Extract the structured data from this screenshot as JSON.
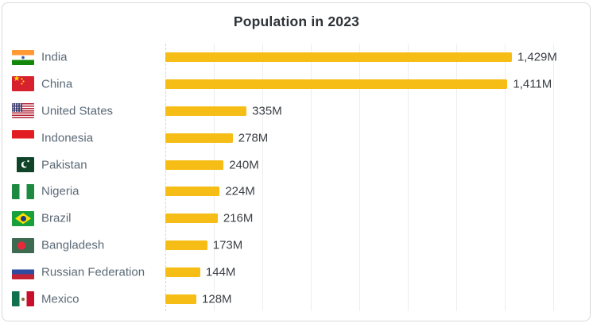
{
  "chart_data": {
    "type": "bar",
    "orientation": "horizontal",
    "title": "Population in 2023",
    "categories": [
      "India",
      "China",
      "United States",
      "Indonesia",
      "Pakistan",
      "Nigeria",
      "Brazil",
      "Bangladesh",
      "Russian Federation",
      "Mexico"
    ],
    "values": [
      1429,
      1411,
      335,
      278,
      240,
      224,
      216,
      173,
      144,
      128
    ],
    "value_labels": [
      "1,429M",
      "1,411M",
      "335M",
      "278M",
      "240M",
      "224M",
      "216M",
      "173M",
      "144M",
      "128M"
    ],
    "flag_icons": [
      "in",
      "cn",
      "us",
      "id",
      "pk",
      "ng",
      "br",
      "bd",
      "ru",
      "mx"
    ],
    "unit": "M",
    "xlim": [
      0,
      1760
    ],
    "gridline_step": 200,
    "gridline_max": 1600,
    "legend": "none",
    "grid": "vertical-lines-only",
    "colors": {
      "bar": "#F6BD16",
      "title_text": "#2E3338",
      "category_text": "#5C6A77",
      "value_text": "#3C4045",
      "gridline": "#EDEDED",
      "axis_dashed_line": "#D4D4D4",
      "card_border": "#D9D9D9",
      "background": "#FFFFFF"
    }
  }
}
